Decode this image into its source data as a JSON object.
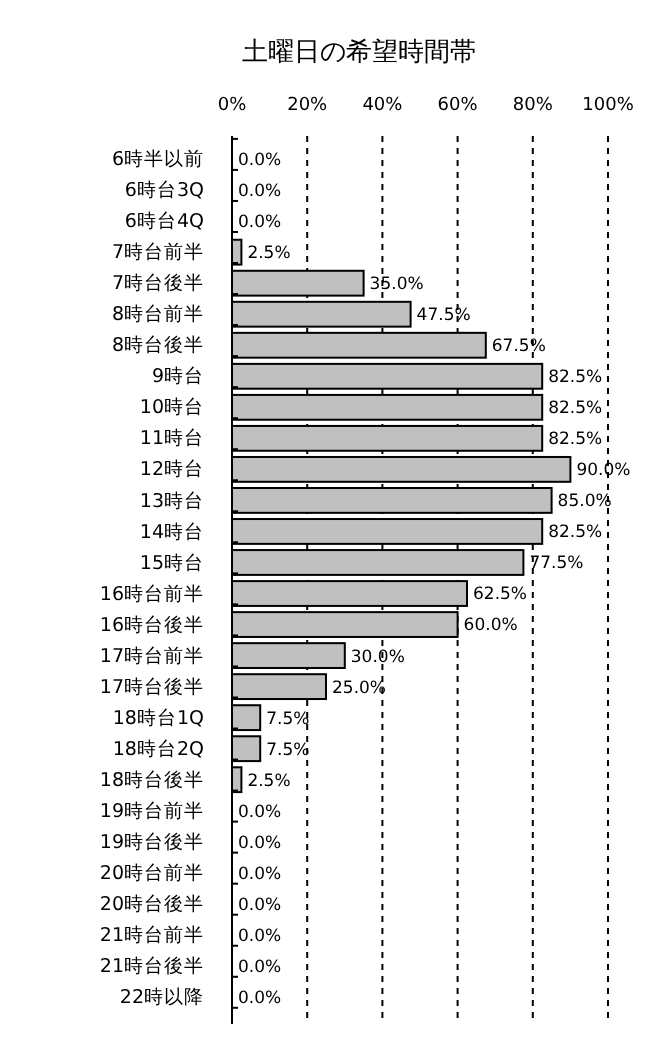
{
  "chart_data": {
    "type": "bar",
    "orientation": "horizontal",
    "title": "土曜日の希望時間帯",
    "categories": [
      "6時半以前",
      "6時台3Q",
      "6時台4Q",
      "7時台前半",
      "7時台後半",
      "8時台前半",
      "8時台後半",
      "9時台",
      "10時台",
      "11時台",
      "12時台",
      "13時台",
      "14時台",
      "15時台",
      "16時台前半",
      "16時台後半",
      "17時台前半",
      "17時台後半",
      "18時台1Q",
      "18時台2Q",
      "18時台後半",
      "19時台前半",
      "19時台後半",
      "20時台前半",
      "20時台後半",
      "21時台前半",
      "21時台後半",
      "22時以降"
    ],
    "values": [
      0,
      0,
      0,
      2.5,
      35,
      47.5,
      67.5,
      82.5,
      82.5,
      82.5,
      90,
      85,
      82.5,
      77.5,
      62.5,
      60,
      30,
      25,
      7.5,
      7.5,
      2.5,
      0,
      0,
      0,
      0,
      0,
      0,
      0
    ],
    "value_labels": [
      "0.0%",
      "0.0%",
      "0.0%",
      "2.5%",
      "35.0%",
      "47.5%",
      "67.5%",
      "82.5%",
      "82.5%",
      "82.5%",
      "90.0%",
      "85.0%",
      "82.5%",
      "77.5%",
      "62.5%",
      "60.0%",
      "30.0%",
      "25.0%",
      "7.5%",
      "7.5%",
      "2.5%",
      "0.0%",
      "0.0%",
      "0.0%",
      "0.0%",
      "0.0%",
      "0.0%",
      "0.0%"
    ],
    "color": "#c0c0c0",
    "xlim": [
      0,
      100
    ],
    "xticks": [
      {
        "value": 0,
        "label": "0%"
      },
      {
        "value": 20,
        "label": "20%"
      },
      {
        "value": 40,
        "label": "40%"
      },
      {
        "value": 60,
        "label": "60%"
      },
      {
        "value": 80,
        "label": "80%"
      },
      {
        "value": 100,
        "label": "100%"
      }
    ],
    "grid": "x"
  }
}
